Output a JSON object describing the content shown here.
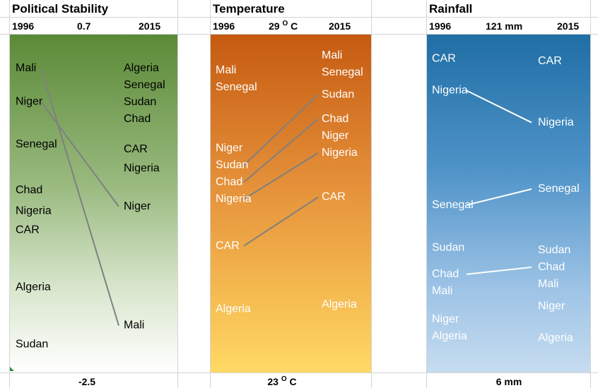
{
  "colors": {
    "political_text": "#000000",
    "political_line": "#808080",
    "temperature_text": "#ffffff",
    "temperature_line": "#808080",
    "rainfall_text": "#ffffff",
    "rainfall_line": "#ffffff"
  },
  "panels": [
    {
      "title": "Political Stability",
      "left_year": "1996",
      "right_year": "2015",
      "top_value": "0.7",
      "top_unit": "",
      "bottom_value": "-2.5",
      "bottom_unit": ""
    },
    {
      "title": "Temperature",
      "left_year": "1996",
      "right_year": "2015",
      "top_value": "29",
      "top_unit": "C",
      "bottom_value": "23",
      "bottom_unit": "C"
    },
    {
      "title": "Rainfall",
      "left_year": "1996",
      "right_year": "2015",
      "top_value": "121 mm",
      "top_unit": "",
      "bottom_value": "6 mm",
      "bottom_unit": ""
    }
  ],
  "chart_data": [
    {
      "type": "slope",
      "title": "Political Stability",
      "x": [
        "1996",
        "2015"
      ],
      "ylim": [
        -2.5,
        0.7
      ],
      "series": [
        {
          "name": "Mali",
          "values": [
            0.5,
            -2.2
          ]
        },
        {
          "name": "Niger",
          "values": [
            0.15,
            -0.95
          ]
        },
        {
          "name": "Senegal",
          "values": [
            -0.3,
            null
          ]
        },
        {
          "name": "Chad",
          "values": [
            -0.78,
            0.05
          ]
        },
        {
          "name": "Nigeria",
          "values": [
            -1.0,
            -0.55
          ]
        },
        {
          "name": "CAR",
          "values": [
            -1.2,
            -0.35
          ]
        },
        {
          "name": "Algeria",
          "values": [
            -1.8,
            0.5
          ]
        },
        {
          "name": "Senegal",
          "values": [
            null,
            0.35
          ]
        },
        {
          "name": "Sudan",
          "values": [
            -2.4,
            0.15
          ]
        }
      ],
      "lines": [
        "Mali",
        "Niger"
      ]
    },
    {
      "type": "slope",
      "title": "Temperature",
      "x": [
        "1996",
        "2015"
      ],
      "ylim": [
        23,
        29
      ],
      "series": [
        {
          "name": "Mali",
          "values": [
            28.5,
            28.8
          ]
        },
        {
          "name": "Senegal",
          "values": [
            28.2,
            28.5
          ]
        },
        {
          "name": "Niger",
          "values": [
            26.9,
            27.2
          ]
        },
        {
          "name": "Sudan",
          "values": [
            26.6,
            28.0
          ]
        },
        {
          "name": "Chad",
          "values": [
            26.3,
            27.5
          ]
        },
        {
          "name": "Nigeria",
          "values": [
            26.0,
            26.9
          ]
        },
        {
          "name": "CAR",
          "values": [
            24.9,
            25.9
          ]
        },
        {
          "name": "Algeria",
          "values": [
            23.6,
            23.7
          ]
        }
      ],
      "lines": [
        "Sudan",
        "Chad",
        "Nigeria",
        "CAR"
      ]
    },
    {
      "type": "slope",
      "title": "Rainfall",
      "x": [
        "1996",
        "2015"
      ],
      "ylim": [
        6,
        121
      ],
      "series": [
        {
          "name": "CAR",
          "values": [
            117,
            116
          ]
        },
        {
          "name": "Nigeria",
          "values": [
            105,
            93
          ]
        },
        {
          "name": "Senegal",
          "values": [
            62,
            68
          ]
        },
        {
          "name": "Sudan",
          "values": [
            46,
            45
          ]
        },
        {
          "name": "Chad",
          "values": [
            36,
            39
          ]
        },
        {
          "name": "Mali",
          "values": [
            30,
            34
          ]
        },
        {
          "name": "Niger",
          "values": [
            19,
            24
          ]
        },
        {
          "name": "Algeria",
          "values": [
            13,
            12
          ]
        }
      ],
      "lines": [
        "Nigeria",
        "Senegal",
        "Chad"
      ]
    }
  ]
}
